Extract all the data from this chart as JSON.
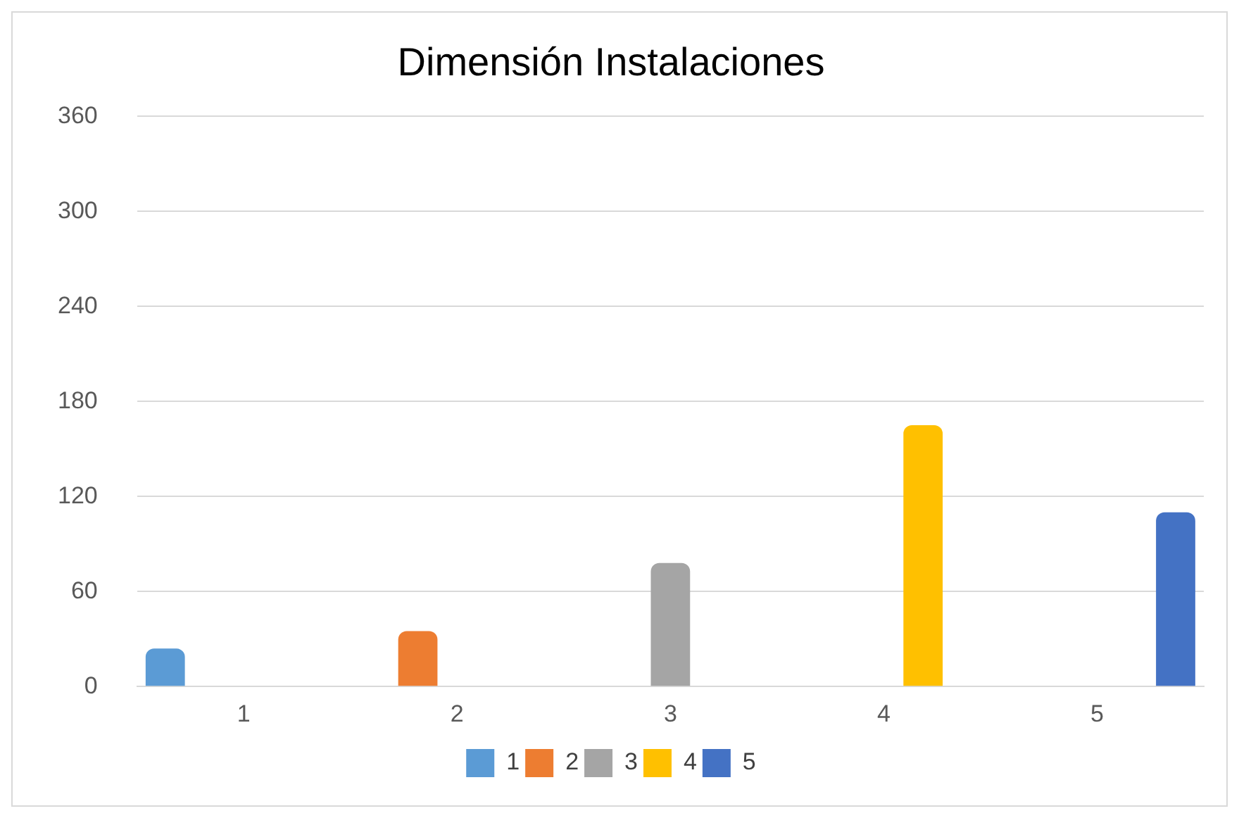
{
  "chart_data": {
    "type": "bar",
    "title": "Dimensión Instalaciones",
    "categories": [
      "1",
      "2",
      "3",
      "4",
      "5"
    ],
    "series": [
      {
        "name": "1",
        "color": "#5b9bd5",
        "values": [
          24,
          null,
          null,
          null,
          null
        ]
      },
      {
        "name": "2",
        "color": "#ed7d31",
        "values": [
          null,
          35,
          null,
          null,
          null
        ]
      },
      {
        "name": "3",
        "color": "#a5a5a5",
        "values": [
          null,
          null,
          78,
          null,
          null
        ]
      },
      {
        "name": "4",
        "color": "#ffc000",
        "values": [
          null,
          null,
          null,
          165,
          null
        ]
      },
      {
        "name": "5",
        "color": "#4472c4",
        "values": [
          null,
          null,
          null,
          null,
          110
        ]
      }
    ],
    "ylim": [
      0,
      360
    ],
    "yticks": [
      0,
      60,
      120,
      180,
      240,
      300,
      360
    ],
    "grid": "y",
    "legend": "bottom"
  }
}
